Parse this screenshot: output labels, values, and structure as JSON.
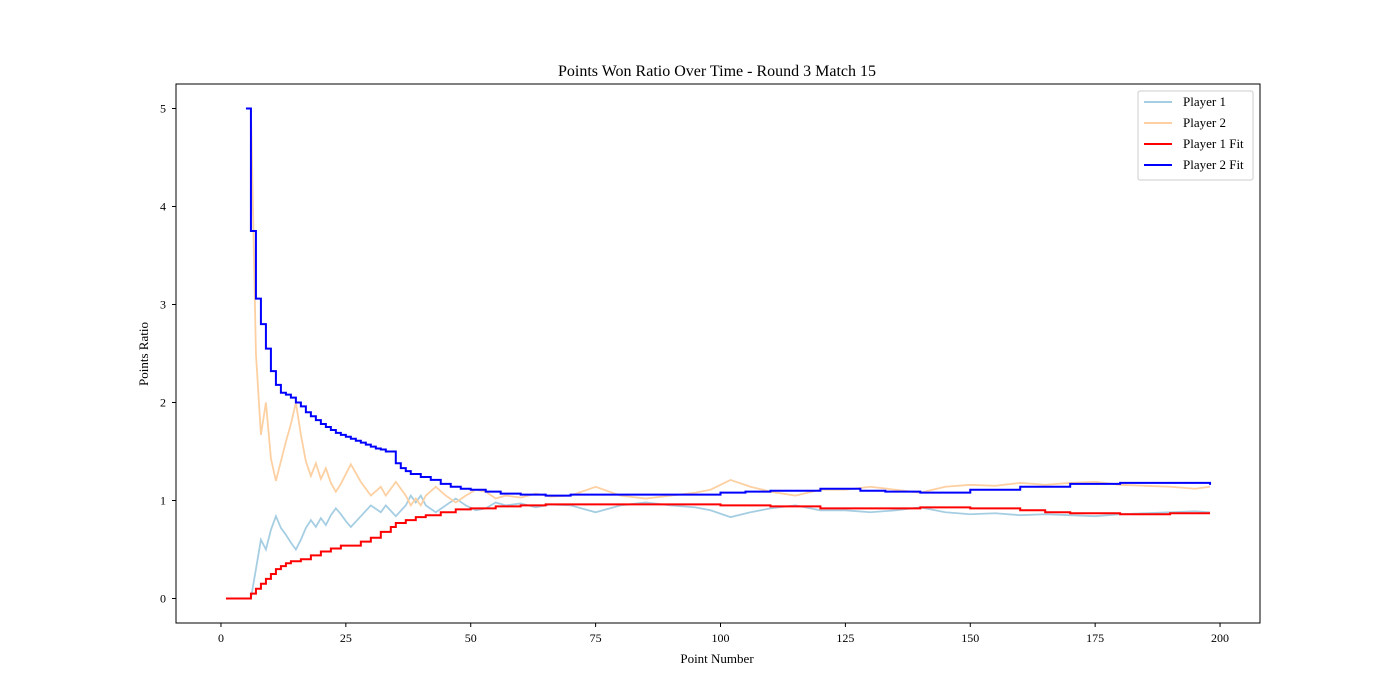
{
  "chart_data": {
    "type": "line",
    "title": "Points Won Ratio Over Time - Round 3 Match 15",
    "xlabel": "Point Number",
    "ylabel": "Points Ratio",
    "xlim": [
      -9,
      208
    ],
    "ylim": [
      -0.25,
      5.25
    ],
    "xticks": [
      0,
      25,
      50,
      75,
      100,
      125,
      150,
      175,
      200
    ],
    "yticks": [
      0,
      1,
      2,
      3,
      4,
      5
    ],
    "grid": false,
    "legend_position": "top-right",
    "series": [
      {
        "name": "Player 1",
        "color": "#a6cee3",
        "style": "line",
        "x": [
          6,
          7,
          8,
          9,
          10,
          11,
          12,
          13,
          14,
          15,
          16,
          17,
          18,
          19,
          20,
          21,
          22,
          23,
          24,
          25,
          26,
          28,
          30,
          32,
          33,
          35,
          37,
          38,
          39,
          40,
          41,
          43,
          45,
          47,
          49,
          51,
          53,
          55,
          57,
          60,
          63,
          66,
          70,
          75,
          80,
          85,
          90,
          95,
          98,
          102,
          106,
          110,
          115,
          120,
          125,
          130,
          135,
          140,
          145,
          150,
          155,
          160,
          165,
          170,
          175,
          180,
          185,
          190,
          195,
          198
        ],
        "y": [
          0,
          0.3,
          0.6,
          0.5,
          0.7,
          0.84,
          0.72,
          0.65,
          0.57,
          0.5,
          0.6,
          0.72,
          0.8,
          0.73,
          0.82,
          0.75,
          0.85,
          0.92,
          0.86,
          0.79,
          0.73,
          0.84,
          0.95,
          0.88,
          0.95,
          0.84,
          0.95,
          1.05,
          0.98,
          1.05,
          0.95,
          0.88,
          0.95,
          1.02,
          0.95,
          0.9,
          0.92,
          0.98,
          0.95,
          0.97,
          0.93,
          0.96,
          0.95,
          0.88,
          0.95,
          0.98,
          0.95,
          0.93,
          0.9,
          0.83,
          0.88,
          0.92,
          0.95,
          0.9,
          0.9,
          0.88,
          0.9,
          0.93,
          0.88,
          0.86,
          0.87,
          0.85,
          0.86,
          0.85,
          0.84,
          0.86,
          0.87,
          0.88,
          0.89,
          0.88
        ]
      },
      {
        "name": "Player 2",
        "color": "#fdd0a2",
        "style": "line",
        "x": [
          6,
          7,
          8,
          9,
          10,
          11,
          12,
          13,
          14,
          15,
          16,
          17,
          18,
          19,
          20,
          21,
          22,
          23,
          24,
          25,
          26,
          28,
          30,
          32,
          33,
          35,
          37,
          38,
          39,
          40,
          41,
          43,
          45,
          47,
          49,
          51,
          53,
          55,
          57,
          60,
          63,
          66,
          70,
          75,
          80,
          85,
          90,
          95,
          98,
          102,
          106,
          110,
          115,
          120,
          125,
          130,
          135,
          140,
          145,
          150,
          155,
          160,
          165,
          170,
          175,
          180,
          185,
          190,
          195,
          198
        ],
        "y": [
          5,
          2.5,
          1.67,
          2.0,
          1.43,
          1.2,
          1.4,
          1.6,
          1.78,
          2.0,
          1.67,
          1.4,
          1.25,
          1.38,
          1.22,
          1.33,
          1.18,
          1.09,
          1.17,
          1.27,
          1.37,
          1.19,
          1.05,
          1.14,
          1.05,
          1.19,
          1.05,
          0.95,
          1.02,
          0.95,
          1.05,
          1.14,
          1.05,
          0.98,
          1.05,
          1.11,
          1.09,
          1.02,
          1.05,
          1.03,
          1.07,
          1.04,
          1.05,
          1.14,
          1.05,
          1.02,
          1.05,
          1.08,
          1.11,
          1.21,
          1.14,
          1.09,
          1.05,
          1.11,
          1.11,
          1.14,
          1.11,
          1.08,
          1.14,
          1.16,
          1.15,
          1.18,
          1.16,
          1.18,
          1.19,
          1.16,
          1.15,
          1.14,
          1.12,
          1.14
        ]
      },
      {
        "name": "Player 1 Fit",
        "color": "#ff0000",
        "style": "step",
        "x": [
          1,
          5,
          6,
          7,
          8,
          9,
          10,
          11,
          12,
          13,
          14,
          16,
          18,
          20,
          22,
          24,
          28,
          30,
          32,
          34,
          35,
          37,
          39,
          41,
          44,
          47,
          50,
          55,
          60,
          65,
          70,
          80,
          90,
          100,
          110,
          120,
          130,
          140,
          150,
          160,
          165,
          170,
          180,
          190,
          198
        ],
        "y": [
          0,
          0,
          0.05,
          0.1,
          0.15,
          0.2,
          0.25,
          0.3,
          0.33,
          0.36,
          0.38,
          0.4,
          0.44,
          0.48,
          0.51,
          0.54,
          0.58,
          0.62,
          0.68,
          0.73,
          0.77,
          0.8,
          0.83,
          0.85,
          0.88,
          0.91,
          0.92,
          0.94,
          0.95,
          0.96,
          0.96,
          0.96,
          0.96,
          0.95,
          0.94,
          0.92,
          0.92,
          0.93,
          0.92,
          0.9,
          0.88,
          0.87,
          0.86,
          0.87,
          0.87
        ]
      },
      {
        "name": "Player 2 Fit",
        "color": "#0000ff",
        "style": "step",
        "x": [
          5,
          6,
          7,
          8,
          9,
          10,
          11,
          12,
          13,
          14,
          15,
          16,
          17,
          18,
          19,
          20,
          21,
          22,
          23,
          24,
          25,
          26,
          27,
          28,
          29,
          30,
          31,
          32,
          33,
          35,
          36,
          37,
          38,
          40,
          42,
          44,
          46,
          48,
          50,
          53,
          56,
          60,
          65,
          70,
          75,
          85,
          95,
          100,
          105,
          110,
          120,
          128,
          133,
          140,
          150,
          160,
          170,
          180,
          190,
          198
        ],
        "y": [
          5.0,
          3.75,
          3.06,
          2.8,
          2.55,
          2.32,
          2.18,
          2.1,
          2.08,
          2.05,
          2.0,
          1.96,
          1.9,
          1.86,
          1.82,
          1.78,
          1.75,
          1.72,
          1.69,
          1.67,
          1.65,
          1.63,
          1.61,
          1.59,
          1.57,
          1.55,
          1.53,
          1.52,
          1.5,
          1.38,
          1.33,
          1.3,
          1.27,
          1.24,
          1.21,
          1.17,
          1.14,
          1.12,
          1.11,
          1.09,
          1.07,
          1.06,
          1.05,
          1.06,
          1.06,
          1.06,
          1.06,
          1.08,
          1.09,
          1.1,
          1.12,
          1.1,
          1.09,
          1.08,
          1.11,
          1.14,
          1.17,
          1.18,
          1.18,
          1.16
        ]
      }
    ]
  }
}
